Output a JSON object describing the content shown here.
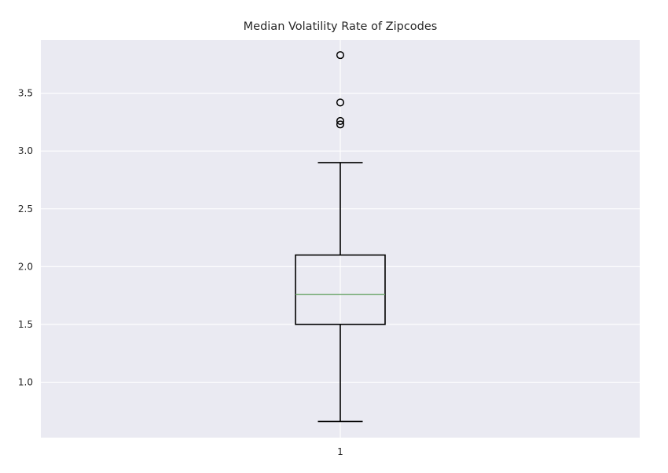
{
  "chart_data": {
    "type": "box",
    "title": "Median Volatility Rate of Zipcodes",
    "xlabel": "",
    "ylabel": "",
    "categories": [
      "1"
    ],
    "ylim": [
      0.52,
      3.96
    ],
    "yticks": [
      1.0,
      1.5,
      2.0,
      2.5,
      3.0,
      3.5
    ],
    "ytick_labels": [
      "1.0",
      "1.5",
      "2.0",
      "2.5",
      "3.0",
      "3.5"
    ],
    "grid": true,
    "boxes": [
      {
        "category": "1",
        "whisker_low": 0.66,
        "q1": 1.5,
        "median": 1.76,
        "q3": 2.1,
        "whisker_high": 2.9,
        "outliers": [
          3.83,
          3.42,
          3.26,
          3.23
        ]
      }
    ],
    "colors": {
      "plot_background": "#eaeaf2",
      "grid": "#ffffff",
      "box": "#000000",
      "median": "#6aa56a",
      "text": "#262626"
    }
  }
}
